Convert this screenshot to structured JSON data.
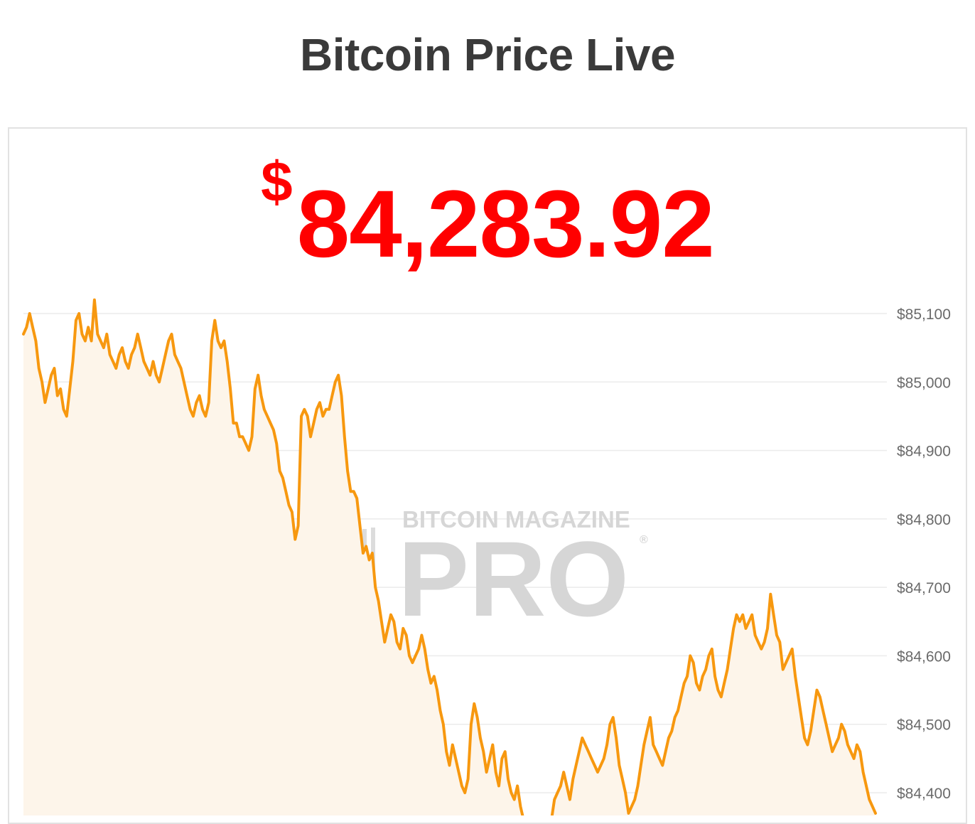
{
  "header": {
    "title": "Bitcoin Price Live"
  },
  "price": {
    "currency_symbol": "$",
    "value": "84,283.92"
  },
  "watermark": {
    "line1": "BITCOIN MAGAZINE",
    "line2": "PRO",
    "mark": "®"
  },
  "colors": {
    "line": "#f7980f",
    "fill": "#fdf5ea",
    "price": "#ff0000",
    "grid": "#ebebeb"
  },
  "chart_data": {
    "type": "area",
    "title": "",
    "xlabel": "",
    "ylabel": "",
    "ylim": [
      84370,
      85100
    ],
    "y_ticks": [
      {
        "value": 85100,
        "label": "$85,100"
      },
      {
        "value": 85000,
        "label": "$85,000"
      },
      {
        "value": 84900,
        "label": "$84,900"
      },
      {
        "value": 84800,
        "label": "$84,800"
      },
      {
        "value": 84700,
        "label": "$84,700"
      },
      {
        "value": 84600,
        "label": "$84,600"
      },
      {
        "value": 84500,
        "label": "$84,500"
      },
      {
        "value": 84400,
        "label": "$84,400"
      }
    ],
    "grid": true,
    "series": [
      {
        "values": [
          85070,
          85080,
          85100,
          85080,
          85060,
          85020,
          85000,
          84970,
          84990,
          85010,
          85020,
          84980,
          84990,
          84960,
          84950,
          84990,
          85030,
          85090,
          85100,
          85070,
          85060,
          85080,
          85060,
          85120,
          85070,
          85060,
          85050,
          85070,
          85040,
          85030,
          85020,
          85040,
          85050,
          85030,
          85020,
          85040,
          85050,
          85070,
          85050,
          85030,
          85020,
          85010,
          85030,
          85010,
          85000,
          85020,
          85040,
          85060,
          85070,
          85040,
          85030,
          85020,
          85000,
          84980,
          84960,
          84950,
          84970,
          84980,
          84960,
          84950,
          84970,
          85060,
          85090,
          85060,
          85050,
          85060,
          85030,
          84990,
          84940,
          84940,
          84920,
          84920,
          84910,
          84900,
          84920,
          84990,
          85010,
          84980,
          84960,
          84950,
          84940,
          84930,
          84910,
          84870,
          84860,
          84840,
          84820,
          84810,
          84770,
          84790,
          84950,
          84960,
          84950,
          84920,
          84940,
          84960,
          84970,
          84950,
          84960,
          84960,
          84980,
          85000,
          85010,
          84980,
          84920,
          84870,
          84840,
          84840,
          84830,
          84790,
          84750,
          84760,
          84740,
          84750,
          84700,
          84680,
          84650,
          84620,
          84640,
          84660,
          84650,
          84620,
          84610,
          84640,
          84630,
          84600,
          84590,
          84600,
          84610,
          84630,
          84610,
          84580,
          84560,
          84570,
          84550,
          84520,
          84500,
          84460,
          84440,
          84470,
          84450,
          84430,
          84410,
          84400,
          84420,
          84500,
          84530,
          84510,
          84480,
          84460,
          84430,
          84450,
          84470,
          84430,
          84410,
          84450,
          84460,
          84420,
          84400,
          84390,
          84410,
          84380,
          84360,
          84340,
          84320,
          84310,
          84300,
          84320,
          84330,
          84320,
          84340,
          84360,
          84390,
          84400,
          84410,
          84430,
          84410,
          84390,
          84420,
          84440,
          84460,
          84480,
          84470,
          84460,
          84450,
          84440,
          84430,
          84440,
          84450,
          84470,
          84500,
          84510,
          84480,
          84440,
          84420,
          84400,
          84370,
          84380,
          84390,
          84410,
          84440,
          84470,
          84490,
          84510,
          84470,
          84460,
          84450,
          84440,
          84460,
          84480,
          84490,
          84510,
          84520,
          84540,
          84560,
          84570,
          84600,
          84590,
          84560,
          84550,
          84570,
          84580,
          84600,
          84610,
          84570,
          84550,
          84540,
          84560,
          84580,
          84610,
          84640,
          84660,
          84650,
          84660,
          84640,
          84650,
          84660,
          84630,
          84620,
          84610,
          84620,
          84640,
          84690,
          84660,
          84630,
          84620,
          84580,
          84590,
          84600,
          84610,
          84570,
          84540,
          84510,
          84480,
          84470,
          84490,
          84520,
          84550,
          84540,
          84520,
          84500,
          84480,
          84460,
          84470,
          84480,
          84500,
          84490,
          84470,
          84460,
          84450,
          84470,
          84460,
          84430,
          84410,
          84390,
          84380,
          84370
        ]
      }
    ]
  }
}
